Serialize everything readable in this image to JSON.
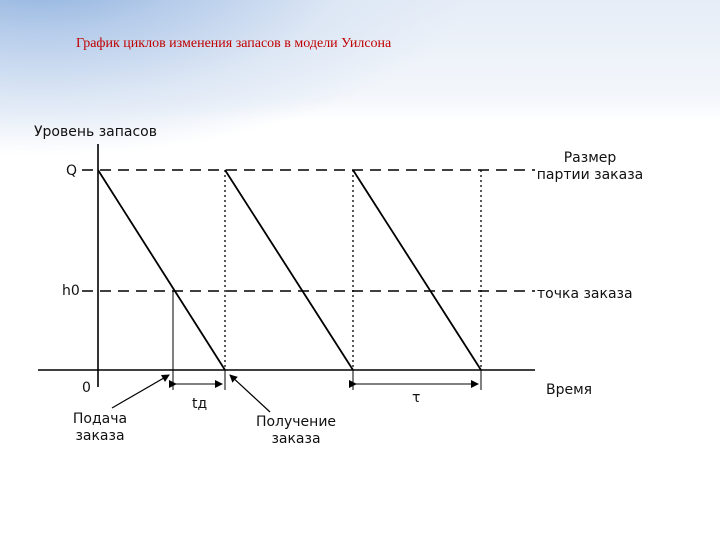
{
  "slide": {
    "title": "График циклов изменения запасов в модели Уилсона"
  },
  "diagram": {
    "y_axis_label": "Уровень запасов",
    "x_axis_label": "Время",
    "origin_label": "0",
    "q_label": "Q",
    "h0_label": "h0",
    "batch_size_label_line1": "Размер",
    "batch_size_label_line2": "партии заказа",
    "reorder_point_label": "точка заказа",
    "lead_time_label": "tд",
    "cycle_label": "τ",
    "order_placed_line1": "Подача",
    "order_placed_line2": "заказа",
    "order_received_line1": "Получение",
    "order_received_line2": "заказа"
  }
}
